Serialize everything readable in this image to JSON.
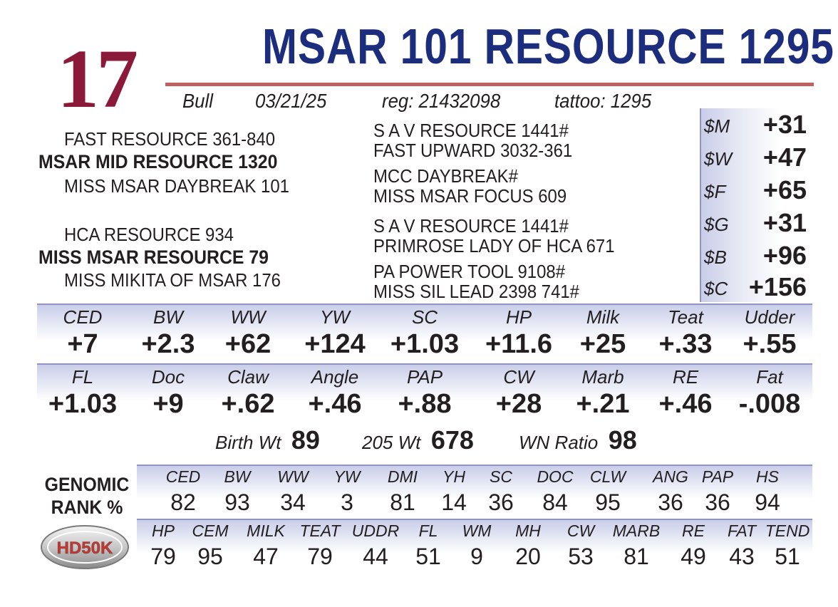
{
  "lot_number": "17",
  "animal_name": "MSAR 101 RESOURCE 1295",
  "info": {
    "sex": "Bull",
    "birth_date": "03/21/25",
    "reg": "reg: 21432098",
    "tattoo": "tattoo:  1295"
  },
  "pedigree": {
    "sire_sire": "FAST RESOURCE 361-840",
    "sire": "MSAR MID RESOURCE 1320",
    "sire_dam": "MISS MSAR DAYBREAK 101",
    "dam_sire": "HCA RESOURCE 934",
    "dam": "MISS MSAR RESOURCE 79",
    "dam_dam": "MISS MIKITA OF MSAR 176",
    "ggs1": "S A V RESOURCE 1441#",
    "ggd1": "FAST UPWARD 3032-361",
    "ggs2": "MCC DAYBREAK#",
    "ggd2": "MISS MSAR FOCUS 609",
    "ggs3": "S A V RESOURCE 1441#",
    "ggd3": "PRIMROSE LADY OF HCA 671",
    "ggs4": "PA POWER TOOL 9108#",
    "ggd4": "MISS SIL LEAD 2398 741#"
  },
  "dollar_indexes": [
    {
      "label": "$M",
      "value": "+31"
    },
    {
      "label": "$W",
      "value": "+47"
    },
    {
      "label": "$F",
      "value": "+65"
    },
    {
      "label": "$G",
      "value": "+31"
    },
    {
      "label": "$B",
      "value": "+96"
    },
    {
      "label": "$C",
      "value": "+156"
    }
  ],
  "epd_row1": [
    {
      "label": "CED",
      "value": "+7"
    },
    {
      "label": "BW",
      "value": "+2.3"
    },
    {
      "label": "WW",
      "value": "+62"
    },
    {
      "label": "YW",
      "value": "+124"
    },
    {
      "label": "SC",
      "value": "+1.03"
    },
    {
      "label": "HP",
      "value": "+11.6"
    },
    {
      "label": "Milk",
      "value": "+25"
    },
    {
      "label": "Teat",
      "value": "+.33"
    },
    {
      "label": "Udder",
      "value": "+.55"
    }
  ],
  "epd_row2": [
    {
      "label": "FL",
      "value": "+1.03"
    },
    {
      "label": "Doc",
      "value": "+9"
    },
    {
      "label": "Claw",
      "value": "+.62"
    },
    {
      "label": "Angle",
      "value": "+.46"
    },
    {
      "label": "PAP",
      "value": "+.88"
    },
    {
      "label": "CW",
      "value": "+28"
    },
    {
      "label": "Marb",
      "value": "+.21"
    },
    {
      "label": "RE",
      "value": "+.46"
    },
    {
      "label": "Fat",
      "value": "-.008"
    }
  ],
  "weights": {
    "birth_label": "Birth Wt",
    "birth_value": "89",
    "w205_label": "205 Wt",
    "w205_value": "678",
    "ratio_label": "WN Ratio",
    "ratio_value": "98"
  },
  "genomic": {
    "title_line1": "GENOMIC",
    "title_line2": "RANK %",
    "row1": [
      {
        "label": "CED",
        "value": "82"
      },
      {
        "label": "BW",
        "value": "93"
      },
      {
        "label": "WW",
        "value": "34"
      },
      {
        "label": "YW",
        "value": "3"
      },
      {
        "label": "DMI",
        "value": "81"
      },
      {
        "label": "YH",
        "value": "14"
      },
      {
        "label": "SC",
        "value": "36"
      },
      {
        "label": "DOC",
        "value": "84"
      },
      {
        "label": "CLW",
        "value": "95"
      },
      {
        "label": "ANG",
        "value": "36"
      },
      {
        "label": "PAP",
        "value": "36"
      },
      {
        "label": "HS",
        "value": "94"
      }
    ],
    "row2": [
      {
        "label": "HP",
        "value": "79"
      },
      {
        "label": "CEM",
        "value": "95"
      },
      {
        "label": "MILK",
        "value": "47"
      },
      {
        "label": "TEAT",
        "value": "79"
      },
      {
        "label": "UDDR",
        "value": "44"
      },
      {
        "label": "FL",
        "value": "51"
      },
      {
        "label": "WM",
        "value": "9"
      },
      {
        "label": "MH",
        "value": "20"
      },
      {
        "label": "CW",
        "value": "53"
      },
      {
        "label": "MARB",
        "value": "81"
      },
      {
        "label": "RE",
        "value": "49"
      },
      {
        "label": "FAT",
        "value": "43"
      },
      {
        "label": "TEND",
        "value": "51"
      }
    ]
  },
  "logo_text": "HD50K",
  "colors": {
    "lot": "#8b1a3a",
    "title": "#1d2d7d",
    "rule": "#c06060",
    "band": "#c9cde8"
  }
}
